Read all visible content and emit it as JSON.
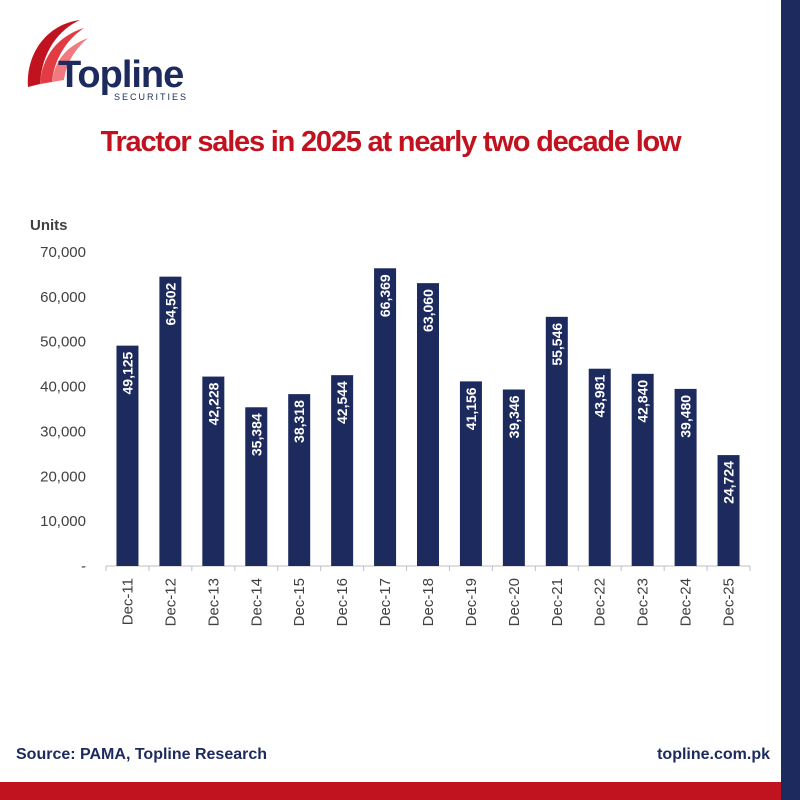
{
  "brand": {
    "name": "Topline",
    "subtitle": "SECURITIES",
    "colors": {
      "navy": "#1c2a5e",
      "red": "#c1121f"
    }
  },
  "footer": {
    "source": "Source: PAMA, Topline Research",
    "website": "topline.com.pk"
  },
  "chart_data": {
    "type": "bar",
    "title": "Tractor sales in 2025 at nearly two decade low",
    "xlabel": "",
    "ylabel": "Units",
    "categories": [
      "Dec-11",
      "Dec-12",
      "Dec-13",
      "Dec-14",
      "Dec-15",
      "Dec-16",
      "Dec-17",
      "Dec-18",
      "Dec-19",
      "Dec-20",
      "Dec-21",
      "Dec-22",
      "Dec-23",
      "Dec-24",
      "Dec-25"
    ],
    "values": [
      49125,
      64502,
      42228,
      35384,
      38318,
      42544,
      66369,
      63060,
      41156,
      39346,
      55546,
      43981,
      42840,
      39480,
      24724
    ],
    "value_labels": [
      "49,125",
      "64,502",
      "42,228",
      "35,384",
      "38,318",
      "42,544",
      "66,369",
      "63,060",
      "41,156",
      "39,346",
      "55,546",
      "43,981",
      "42,840",
      "39,480",
      "24,724"
    ],
    "ylim": [
      0,
      70000
    ],
    "yticks": [
      0,
      10000,
      20000,
      30000,
      40000,
      50000,
      60000,
      70000
    ],
    "ytick_labels": [
      "-",
      "10,000",
      "20,000",
      "30,000",
      "40,000",
      "50,000",
      "60,000",
      "70,000"
    ],
    "grid": false,
    "legend": "none",
    "bar_color": "#1c2a5e"
  }
}
